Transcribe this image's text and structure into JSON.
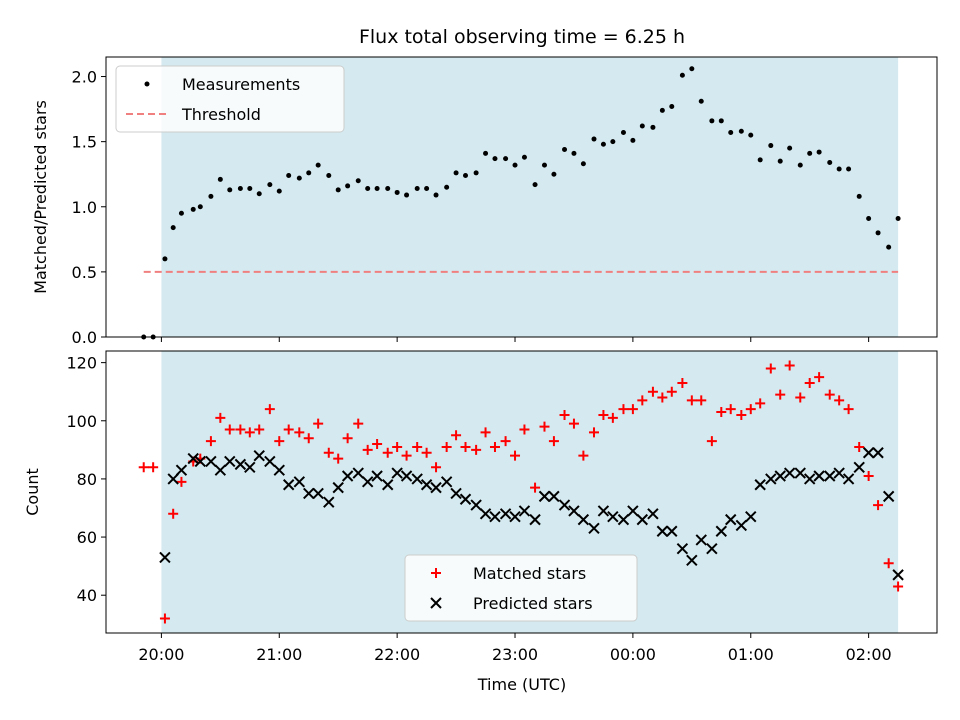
{
  "chart_data": [
    {
      "type": "scatter",
      "title": "Flux total observing time = 6.25 h",
      "xlabel": "",
      "ylabel": "Matched/Predicted stars",
      "ylim": [
        0,
        2.15
      ],
      "yticks": [
        "0.0",
        "0.5",
        "1.0",
        "1.5",
        "2.0"
      ],
      "yticks_values": [
        0,
        0.5,
        1.0,
        1.5,
        2.0
      ],
      "x_unit": "hours since 20:00 UTC",
      "xlim": [
        -0.47,
        6.58
      ],
      "shaded_span": [
        0.0,
        6.25
      ],
      "shade_color": "#d4eaf0",
      "legend": {
        "position": "upper left",
        "entries": [
          "Measurements",
          "Threshold"
        ]
      },
      "threshold": {
        "name": "Threshold",
        "value": 0.5,
        "x_start": -0.15,
        "x_end": 6.25,
        "color": "#f08080",
        "style": "dashed"
      },
      "series": [
        {
          "name": "Measurements",
          "marker": "dot",
          "color": "#000000",
          "x": [
            -0.15,
            -0.07,
            0.03,
            0.1,
            0.17,
            0.27,
            0.33,
            0.42,
            0.5,
            0.58,
            0.67,
            0.75,
            0.83,
            0.92,
            1.0,
            1.08,
            1.17,
            1.25,
            1.33,
            1.42,
            1.5,
            1.58,
            1.67,
            1.75,
            1.83,
            1.92,
            2.0,
            2.08,
            2.17,
            2.25,
            2.33,
            2.42,
            2.5,
            2.58,
            2.67,
            2.75,
            2.83,
            2.92,
            3.0,
            3.08,
            3.17,
            3.25,
            3.33,
            3.42,
            3.5,
            3.58,
            3.67,
            3.75,
            3.83,
            3.92,
            4.0,
            4.08,
            4.17,
            4.25,
            4.33,
            4.42,
            4.5,
            4.58,
            4.67,
            4.75,
            4.83,
            4.92,
            5.0,
            5.08,
            5.17,
            5.25,
            5.33,
            5.42,
            5.5,
            5.58,
            5.67,
            5.75,
            5.83,
            5.92,
            6.0,
            6.08,
            6.17,
            6.25
          ],
          "y": [
            0.0,
            0.0,
            0.6,
            0.84,
            0.95,
            0.98,
            1.0,
            1.08,
            1.21,
            1.13,
            1.14,
            1.14,
            1.1,
            1.17,
            1.12,
            1.24,
            1.22,
            1.26,
            1.32,
            1.24,
            1.13,
            1.16,
            1.2,
            1.14,
            1.14,
            1.14,
            1.11,
            1.09,
            1.14,
            1.14,
            1.09,
            1.15,
            1.26,
            1.24,
            1.26,
            1.41,
            1.37,
            1.37,
            1.32,
            1.38,
            1.17,
            1.32,
            1.25,
            1.44,
            1.41,
            1.33,
            1.52,
            1.48,
            1.5,
            1.57,
            1.51,
            1.62,
            1.61,
            1.74,
            1.77,
            2.01,
            2.06,
            1.81,
            1.66,
            1.66,
            1.57,
            1.58,
            1.55,
            1.36,
            1.47,
            1.35,
            1.45,
            1.32,
            1.41,
            1.42,
            1.34,
            1.29,
            1.29,
            1.08,
            0.91,
            0.8,
            0.69,
            0.91
          ]
        }
      ]
    },
    {
      "type": "scatter",
      "title": "",
      "xlabel": "Time (UTC)",
      "ylabel": "Count",
      "ylim": [
        27,
        124
      ],
      "yticks": [
        "40",
        "60",
        "80",
        "100",
        "120"
      ],
      "yticks_values": [
        40,
        60,
        80,
        100,
        120
      ],
      "x_unit": "hours since 20:00 UTC",
      "xlim": [
        -0.47,
        6.58
      ],
      "xticks": [
        "20:00",
        "21:00",
        "22:00",
        "23:00",
        "00:00",
        "01:00",
        "02:00"
      ],
      "xticks_values": [
        0,
        1,
        2,
        3,
        4,
        5,
        6
      ],
      "shaded_span": [
        0.0,
        6.25
      ],
      "shade_color": "#d4eaf0",
      "legend": {
        "position": "lower center",
        "entries": [
          "Matched stars",
          "Predicted stars"
        ]
      },
      "series": [
        {
          "name": "Matched stars",
          "marker": "plus",
          "color": "#ff0000",
          "x": [
            -0.15,
            -0.07,
            0.03,
            0.1,
            0.17,
            0.27,
            0.33,
            0.42,
            0.5,
            0.58,
            0.67,
            0.75,
            0.83,
            0.92,
            1.0,
            1.08,
            1.17,
            1.25,
            1.33,
            1.42,
            1.5,
            1.58,
            1.67,
            1.75,
            1.83,
            1.92,
            2.0,
            2.08,
            2.17,
            2.25,
            2.33,
            2.42,
            2.5,
            2.58,
            2.67,
            2.75,
            2.83,
            2.92,
            3.0,
            3.08,
            3.17,
            3.25,
            3.33,
            3.42,
            3.5,
            3.58,
            3.67,
            3.75,
            3.83,
            3.92,
            4.0,
            4.08,
            4.17,
            4.25,
            4.33,
            4.42,
            4.5,
            4.58,
            4.67,
            4.75,
            4.83,
            4.92,
            5.0,
            5.08,
            5.17,
            5.25,
            5.33,
            5.42,
            5.5,
            5.58,
            5.67,
            5.75,
            5.83,
            5.92,
            6.0,
            6.08,
            6.17,
            6.25
          ],
          "y": [
            84,
            84,
            32,
            68,
            79,
            86,
            87,
            93,
            101,
            97,
            97,
            96,
            97,
            104,
            93,
            97,
            96,
            94,
            99,
            89,
            87,
            94,
            99,
            90,
            92,
            89,
            91,
            88,
            91,
            89,
            84,
            91,
            95,
            91,
            90,
            96,
            91,
            93,
            88,
            97,
            77,
            98,
            93,
            102,
            99,
            88,
            96,
            102,
            101,
            104,
            104,
            107,
            110,
            108,
            110,
            113,
            107,
            107,
            93,
            103,
            104,
            102,
            104,
            106,
            118,
            109,
            119,
            108,
            113,
            115,
            109,
            107,
            104,
            91,
            81,
            71,
            51,
            43
          ]
        },
        {
          "name": "Predicted stars",
          "marker": "x",
          "color": "#000000",
          "x": [
            0.03,
            0.1,
            0.17,
            0.27,
            0.33,
            0.42,
            0.5,
            0.58,
            0.67,
            0.75,
            0.83,
            0.92,
            1.0,
            1.08,
            1.17,
            1.25,
            1.33,
            1.42,
            1.5,
            1.58,
            1.67,
            1.75,
            1.83,
            1.92,
            2.0,
            2.08,
            2.17,
            2.25,
            2.33,
            2.42,
            2.5,
            2.58,
            2.67,
            2.75,
            2.83,
            2.92,
            3.0,
            3.08,
            3.17,
            3.25,
            3.33,
            3.42,
            3.5,
            3.58,
            3.67,
            3.75,
            3.83,
            3.92,
            4.0,
            4.08,
            4.17,
            4.25,
            4.33,
            4.42,
            4.5,
            4.58,
            4.67,
            4.75,
            4.83,
            4.92,
            5.0,
            5.08,
            5.17,
            5.25,
            5.33,
            5.42,
            5.5,
            5.58,
            5.67,
            5.75,
            5.83,
            5.92,
            6.0,
            6.08,
            6.17,
            6.25
          ],
          "y": [
            53,
            80,
            83,
            87,
            86,
            86,
            83,
            86,
            85,
            84,
            88,
            86,
            83,
            78,
            79,
            75,
            75,
            72,
            77,
            81,
            82,
            79,
            81,
            78,
            82,
            81,
            80,
            78,
            77,
            79,
            75,
            73,
            71,
            68,
            67,
            68,
            67,
            69,
            66,
            74,
            74,
            71,
            69,
            66,
            63,
            69,
            67,
            66,
            69,
            66,
            68,
            62,
            62,
            56,
            52,
            59,
            56,
            62,
            66,
            64,
            67,
            78,
            80,
            81,
            82,
            82,
            80,
            81,
            81,
            82,
            80,
            84,
            89,
            89,
            74,
            47
          ]
        }
      ]
    }
  ]
}
